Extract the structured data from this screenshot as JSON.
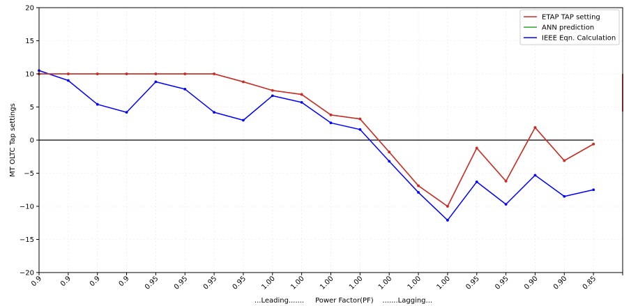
{
  "chart_data": {
    "type": "line",
    "title": "",
    "xlabel": "...Leading.......     Power Factor(PF)    .......Lagging...",
    "ylabel": "MT OLTC Tap settings",
    "ylim": [
      -20,
      20
    ],
    "yticks": [
      "−20",
      "−15",
      "−10",
      "−5",
      "0",
      "5",
      "10",
      "15",
      "20"
    ],
    "categories": [
      "0.9",
      "0.9",
      "0.9",
      "0.9",
      "0.95",
      "0.95",
      "0.95",
      "0.95",
      "1.00",
      "1.00",
      "1.00",
      "1.00",
      "1.00",
      "1.00",
      "1.00",
      "0.95",
      "0.95",
      "0.90",
      "0.90",
      "0.85"
    ],
    "grid": true,
    "legend_position": "top-right",
    "series": [
      {
        "name": "ETAP TAP setting",
        "color": "#d62728",
        "values": [
          10,
          10,
          10,
          10,
          10,
          10,
          10,
          8.8,
          7.5,
          6.9,
          3.8,
          3.2,
          -1.8,
          -6.9,
          -10,
          -1.2,
          -6.2,
          1.9,
          -3.1,
          -0.6
        ]
      },
      {
        "name": "ANN prediction",
        "color": "#2ca02c",
        "values": [
          10,
          10,
          10,
          10,
          10,
          10,
          10,
          8.8,
          7.5,
          6.9,
          3.8,
          3.2,
          -1.8,
          -6.9,
          -10,
          -1.2,
          -6.2,
          1.9,
          -3.1,
          -0.6
        ]
      },
      {
        "name": "IEEE Eqn. Calculation",
        "color": "#0000ff",
        "values": [
          10.5,
          9.0,
          5.4,
          4.2,
          8.8,
          7.7,
          4.2,
          3.0,
          6.7,
          5.7,
          2.6,
          1.6,
          -3.2,
          -7.9,
          -12.1,
          -6.3,
          -9.7,
          -5.3,
          -8.5,
          -7.5
        ]
      }
    ],
    "reference_line": {
      "value": 0,
      "color": "#000000"
    }
  }
}
